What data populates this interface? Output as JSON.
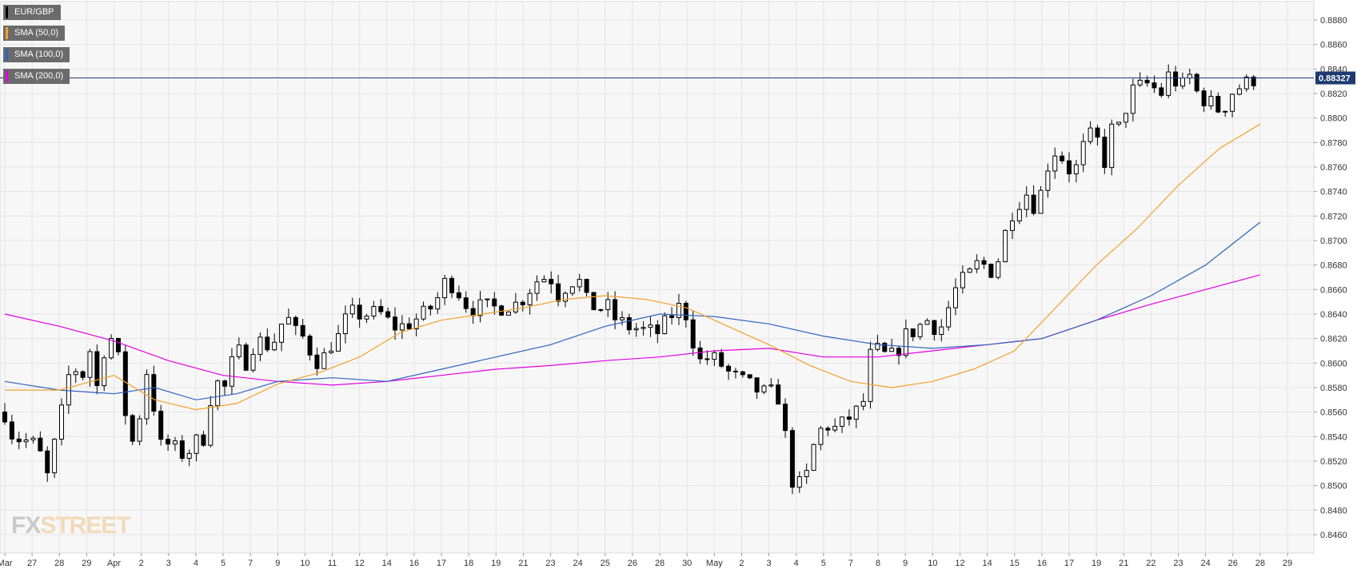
{
  "chart_data": {
    "type": "candlestick",
    "symbol": "EUR/GBP",
    "last_price": "0.88327",
    "legend": [
      {
        "label": "EUR/GBP",
        "color": "#000000"
      },
      {
        "label": "SMA (50,0)",
        "color": "#f5a02c"
      },
      {
        "label": "SMA (100,0)",
        "color": "#2f63c0"
      },
      {
        "label": "SMA (200,0)",
        "color": "#e100e1"
      }
    ],
    "ylim": [
      0.8445,
      0.8895
    ],
    "y_ticks": [
      "0.8460",
      "0.8480",
      "0.8500",
      "0.8520",
      "0.8540",
      "0.8560",
      "0.8580",
      "0.8600",
      "0.8620",
      "0.8640",
      "0.8660",
      "0.8680",
      "0.8700",
      "0.8720",
      "0.8740",
      "0.8760",
      "0.8780",
      "0.8800",
      "0.8820",
      "0.8840",
      "0.8860",
      "0.8880"
    ],
    "x_ticks": [
      {
        "i": 0,
        "label": "Mar"
      },
      {
        "i": 10,
        "label": "27"
      },
      {
        "i": 20,
        "label": "28"
      },
      {
        "i": 30,
        "label": "29"
      },
      {
        "i": 40,
        "label": "Apr"
      },
      {
        "i": 50,
        "label": "2"
      },
      {
        "i": 60,
        "label": "3"
      },
      {
        "i": 70,
        "label": "4"
      },
      {
        "i": 80,
        "label": "5"
      },
      {
        "i": 90,
        "label": "7"
      },
      {
        "i": 100,
        "label": "9"
      },
      {
        "i": 110,
        "label": "10"
      },
      {
        "i": 120,
        "label": "11"
      },
      {
        "i": 130,
        "label": "12"
      },
      {
        "i": 140,
        "label": "14"
      },
      {
        "i": 150,
        "label": "16"
      },
      {
        "i": 160,
        "label": "17"
      },
      {
        "i": 170,
        "label": "18"
      },
      {
        "i": 180,
        "label": "19"
      },
      {
        "i": 190,
        "label": "21"
      },
      {
        "i": 200,
        "label": "23"
      },
      {
        "i": 210,
        "label": "24"
      },
      {
        "i": 220,
        "label": "25"
      },
      {
        "i": 230,
        "label": "26"
      },
      {
        "i": 240,
        "label": "28"
      },
      {
        "i": 250,
        "label": "30"
      },
      {
        "i": 260,
        "label": "May"
      },
      {
        "i": 270,
        "label": "2"
      },
      {
        "i": 280,
        "label": "3"
      },
      {
        "i": 290,
        "label": "4"
      },
      {
        "i": 300,
        "label": "5"
      },
      {
        "i": 310,
        "label": "7"
      },
      {
        "i": 320,
        "label": "8"
      },
      {
        "i": 330,
        "label": "9"
      },
      {
        "i": 340,
        "label": "10"
      },
      {
        "i": 350,
        "label": "12"
      },
      {
        "i": 360,
        "label": "14"
      },
      {
        "i": 370,
        "label": "15"
      },
      {
        "i": 380,
        "label": "16"
      },
      {
        "i": 390,
        "label": "17"
      },
      {
        "i": 400,
        "label": "19"
      },
      {
        "i": 410,
        "label": "21"
      },
      {
        "i": 420,
        "label": "22"
      },
      {
        "i": 430,
        "label": "23"
      },
      {
        "i": 440,
        "label": "24"
      },
      {
        "i": 450,
        "label": "26"
      },
      {
        "i": 460,
        "label": "28"
      },
      {
        "i": 470,
        "label": "29"
      }
    ],
    "price_path": [
      [
        0,
        0.856
      ],
      [
        3,
        0.854
      ],
      [
        6,
        0.8538
      ],
      [
        10,
        0.8535
      ],
      [
        13,
        0.8525
      ],
      [
        15,
        0.85
      ],
      [
        17,
        0.8525
      ],
      [
        20,
        0.8545
      ],
      [
        22,
        0.858
      ],
      [
        25,
        0.86
      ],
      [
        28,
        0.8585
      ],
      [
        31,
        0.8615
      ],
      [
        33,
        0.857
      ],
      [
        36,
        0.861
      ],
      [
        39,
        0.862
      ],
      [
        42,
        0.86
      ],
      [
        45,
        0.8545
      ],
      [
        48,
        0.853
      ],
      [
        50,
        0.857
      ],
      [
        53,
        0.8605
      ],
      [
        56,
        0.853
      ],
      [
        59,
        0.8535
      ],
      [
        62,
        0.853
      ],
      [
        66,
        0.8525
      ],
      [
        70,
        0.8535
      ],
      [
        73,
        0.854
      ],
      [
        76,
        0.858
      ],
      [
        79,
        0.8585
      ],
      [
        82,
        0.8575
      ],
      [
        84,
        0.8615
      ],
      [
        88,
        0.86
      ],
      [
        92,
        0.862
      ],
      [
        95,
        0.8615
      ],
      [
        98,
        0.8615
      ],
      [
        103,
        0.864
      ],
      [
        106,
        0.8625
      ],
      [
        110,
        0.862
      ],
      [
        113,
        0.8605
      ],
      [
        116,
        0.86
      ],
      [
        119,
        0.8615
      ],
      [
        122,
        0.862
      ],
      [
        126,
        0.864
      ],
      [
        130,
        0.864
      ],
      [
        134,
        0.864
      ],
      [
        138,
        0.864
      ],
      [
        142,
        0.863
      ],
      [
        146,
        0.863
      ],
      [
        150,
        0.8635
      ],
      [
        154,
        0.864
      ],
      [
        158,
        0.865
      ],
      [
        161,
        0.8665
      ],
      [
        165,
        0.8665
      ],
      [
        168,
        0.865
      ],
      [
        172,
        0.8645
      ],
      [
        176,
        0.8645
      ],
      [
        180,
        0.8645
      ],
      [
        184,
        0.8648
      ],
      [
        188,
        0.8648
      ],
      [
        192,
        0.866
      ],
      [
        196,
        0.867
      ],
      [
        200,
        0.867
      ],
      [
        203,
        0.8655
      ],
      [
        206,
        0.8665
      ],
      [
        210,
        0.867
      ],
      [
        213,
        0.865
      ],
      [
        217,
        0.8645
      ],
      [
        221,
        0.8645
      ],
      [
        224,
        0.8635
      ],
      [
        228,
        0.863
      ],
      [
        232,
        0.8628
      ],
      [
        236,
        0.8625
      ],
      [
        240,
        0.8625
      ],
      [
        243,
        0.8635
      ],
      [
        246,
        0.8645
      ],
      [
        249,
        0.8645
      ],
      [
        252,
        0.862
      ],
      [
        255,
        0.86
      ],
      [
        258,
        0.8605
      ],
      [
        262,
        0.86
      ],
      [
        266,
        0.859
      ],
      [
        270,
        0.8585
      ],
      [
        274,
        0.858
      ],
      [
        278,
        0.8575
      ],
      [
        282,
        0.8575
      ],
      [
        285,
        0.857
      ],
      [
        287,
        0.851
      ],
      [
        290,
        0.85
      ],
      [
        293,
        0.85
      ],
      [
        296,
        0.853
      ],
      [
        299,
        0.8545
      ],
      [
        302,
        0.855
      ],
      [
        305,
        0.8545
      ],
      [
        309,
        0.8555
      ],
      [
        312,
        0.856
      ],
      [
        315,
        0.857
      ],
      [
        317,
        0.8605
      ],
      [
        320,
        0.861
      ],
      [
        323,
        0.8605
      ],
      [
        326,
        0.8605
      ],
      [
        329,
        0.862
      ],
      [
        332,
        0.8625
      ],
      [
        335,
        0.863
      ],
      [
        338,
        0.8635
      ],
      [
        341,
        0.863
      ],
      [
        344,
        0.863
      ],
      [
        347,
        0.8655
      ],
      [
        350,
        0.8665
      ],
      [
        353,
        0.867
      ],
      [
        356,
        0.868
      ],
      [
        359,
        0.868
      ],
      [
        362,
        0.8675
      ],
      [
        365,
        0.869
      ],
      [
        368,
        0.872
      ],
      [
        371,
        0.873
      ],
      [
        374,
        0.874
      ],
      [
        377,
        0.873
      ],
      [
        380,
        0.874
      ],
      [
        383,
        0.877
      ],
      [
        386,
        0.8775
      ],
      [
        389,
        0.876
      ],
      [
        392,
        0.8755
      ],
      [
        395,
        0.8775
      ],
      [
        398,
        0.8785
      ],
      [
        401,
        0.878
      ],
      [
        403,
        0.8765
      ],
      [
        405,
        0.879
      ],
      [
        408,
        0.879
      ],
      [
        411,
        0.881
      ],
      [
        414,
        0.8825
      ],
      [
        417,
        0.8825
      ],
      [
        420,
        0.883
      ],
      [
        423,
        0.8815
      ],
      [
        426,
        0.8835
      ],
      [
        429,
        0.883
      ],
      [
        432,
        0.8825
      ],
      [
        434,
        0.8835
      ],
      [
        437,
        0.882
      ],
      [
        440,
        0.8815
      ],
      [
        443,
        0.881
      ],
      [
        446,
        0.8805
      ],
      [
        449,
        0.882
      ],
      [
        452,
        0.8825
      ],
      [
        455,
        0.8828
      ],
      [
        458,
        0.8833
      ]
    ],
    "sma_50": [
      [
        0,
        0.8578
      ],
      [
        20,
        0.8578
      ],
      [
        40,
        0.859
      ],
      [
        55,
        0.857
      ],
      [
        70,
        0.8562
      ],
      [
        85,
        0.8567
      ],
      [
        100,
        0.8583
      ],
      [
        115,
        0.8592
      ],
      [
        130,
        0.8605
      ],
      [
        145,
        0.8625
      ],
      [
        160,
        0.8635
      ],
      [
        175,
        0.864
      ],
      [
        190,
        0.8645
      ],
      [
        205,
        0.8652
      ],
      [
        220,
        0.8655
      ],
      [
        235,
        0.8652
      ],
      [
        250,
        0.8645
      ],
      [
        265,
        0.863
      ],
      [
        280,
        0.8615
      ],
      [
        295,
        0.8598
      ],
      [
        310,
        0.8585
      ],
      [
        325,
        0.858
      ],
      [
        340,
        0.8585
      ],
      [
        355,
        0.8595
      ],
      [
        370,
        0.861
      ],
      [
        385,
        0.8645
      ],
      [
        400,
        0.868
      ],
      [
        415,
        0.871
      ],
      [
        430,
        0.8745
      ],
      [
        445,
        0.8775
      ],
      [
        460,
        0.8795
      ]
    ],
    "sma_100": [
      [
        0,
        0.8585
      ],
      [
        20,
        0.8578
      ],
      [
        40,
        0.8575
      ],
      [
        55,
        0.858
      ],
      [
        70,
        0.857
      ],
      [
        85,
        0.8575
      ],
      [
        100,
        0.8585
      ],
      [
        120,
        0.8588
      ],
      [
        140,
        0.8585
      ],
      [
        160,
        0.8595
      ],
      [
        180,
        0.8605
      ],
      [
        200,
        0.8615
      ],
      [
        220,
        0.863
      ],
      [
        240,
        0.864
      ],
      [
        260,
        0.8638
      ],
      [
        280,
        0.8632
      ],
      [
        300,
        0.8622
      ],
      [
        320,
        0.8615
      ],
      [
        340,
        0.8612
      ],
      [
        360,
        0.8615
      ],
      [
        380,
        0.862
      ],
      [
        400,
        0.8635
      ],
      [
        420,
        0.8655
      ],
      [
        440,
        0.868
      ],
      [
        460,
        0.8715
      ]
    ],
    "sma_200": [
      [
        0,
        0.864
      ],
      [
        20,
        0.863
      ],
      [
        40,
        0.8618
      ],
      [
        60,
        0.8602
      ],
      [
        80,
        0.859
      ],
      [
        100,
        0.8585
      ],
      [
        120,
        0.8582
      ],
      [
        140,
        0.8585
      ],
      [
        160,
        0.859
      ],
      [
        180,
        0.8595
      ],
      [
        200,
        0.8598
      ],
      [
        220,
        0.8602
      ],
      [
        240,
        0.8605
      ],
      [
        260,
        0.861
      ],
      [
        280,
        0.8612
      ],
      [
        300,
        0.8605
      ],
      [
        320,
        0.8605
      ],
      [
        340,
        0.861
      ],
      [
        360,
        0.8615
      ],
      [
        380,
        0.862
      ],
      [
        400,
        0.8635
      ],
      [
        420,
        0.8648
      ],
      [
        440,
        0.866
      ],
      [
        460,
        0.8672
      ]
    ]
  },
  "logo": {
    "fx": "FX",
    "street": "STREET"
  },
  "colors": {
    "plot_bg": "#f7f7f7",
    "grid": "#e4e4e4",
    "axis_text": "#333333",
    "price_line": "#1e3a6e",
    "price_label_bg": "#1e3a6e"
  }
}
